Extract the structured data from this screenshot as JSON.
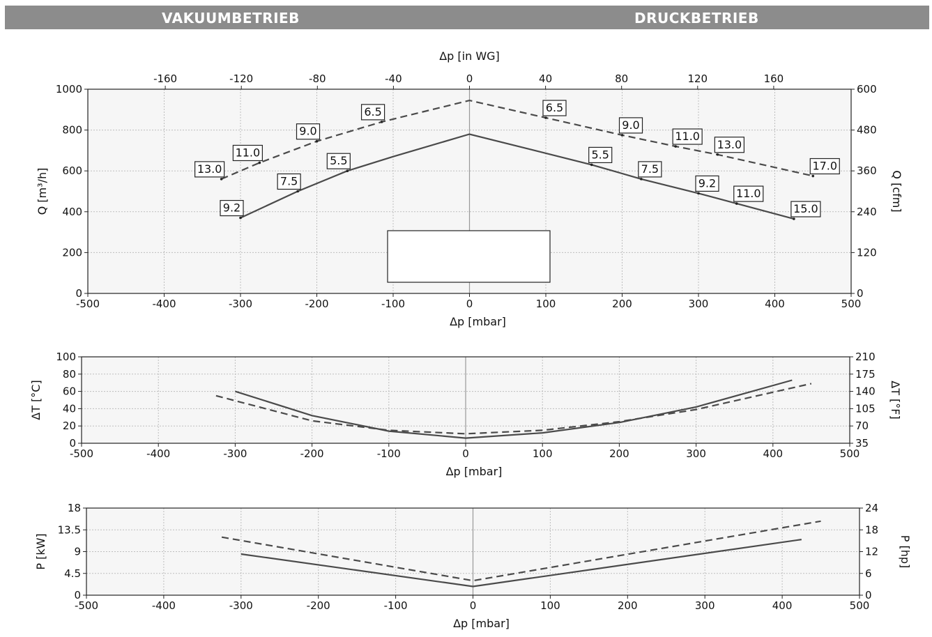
{
  "header": {
    "left_title": "VAKUUMBETRIEB",
    "right_title": "DRUCKBETRIEB"
  },
  "colors": {
    "header_bg": "#8c8c8c",
    "series": "#4a4a4a",
    "grid": "#bdbdbd",
    "plot_bg": "#f6f6f6"
  },
  "chart_data": [
    {
      "type": "line",
      "id": "flow",
      "xlabel": "Δp [mbar]",
      "xlim": [
        -500,
        500
      ],
      "xticks": [
        -500,
        -400,
        -300,
        -200,
        -100,
        0,
        100,
        200,
        300,
        400,
        500
      ],
      "top_xlabel": "Δp [in WG]",
      "top_xticks": [
        -160,
        -120,
        -80,
        -40,
        0,
        40,
        80,
        120,
        160
      ],
      "ylabel": "Q [m³/h]",
      "ylim": [
        0,
        1000
      ],
      "yticks": [
        0,
        200,
        400,
        600,
        800,
        1000
      ],
      "y2label": "Q [cfm]",
      "y2ticks": [
        0,
        120,
        240,
        360,
        480,
        600
      ],
      "grid": true,
      "legend_box": "center-bottom (blank)",
      "series": [
        {
          "style": "solid",
          "points": [
            {
              "x": -300,
              "y": 370,
              "label": "9.2"
            },
            {
              "x": -225,
              "y": 500,
              "label": "7.5"
            },
            {
              "x": -160,
              "y": 600,
              "label": "5.5"
            },
            {
              "x": -100,
              "y": 670
            },
            {
              "x": 0,
              "y": 780
            },
            {
              "x": 160,
              "y": 630,
              "label": "5.5"
            },
            {
              "x": 225,
              "y": 560,
              "label": "7.5"
            },
            {
              "x": 300,
              "y": 490,
              "label": "9.2"
            },
            {
              "x": 350,
              "y": 440,
              "label": "11.0"
            },
            {
              "x": 425,
              "y": 365,
              "label": "15.0"
            }
          ]
        },
        {
          "style": "dashed",
          "points": [
            {
              "x": -325,
              "y": 560,
              "label": "13.0"
            },
            {
              "x": -275,
              "y": 640,
              "label": "11.0"
            },
            {
              "x": -200,
              "y": 745,
              "label": "9.0"
            },
            {
              "x": -115,
              "y": 840,
              "label": "6.5"
            },
            {
              "x": 0,
              "y": 945
            },
            {
              "x": 100,
              "y": 860,
              "label": "6.5"
            },
            {
              "x": 200,
              "y": 775,
              "label": "9.0"
            },
            {
              "x": 270,
              "y": 720,
              "label": "11.0"
            },
            {
              "x": 325,
              "y": 680,
              "label": "13.0"
            },
            {
              "x": 450,
              "y": 575,
              "label": "17.0"
            }
          ]
        }
      ]
    },
    {
      "type": "line",
      "id": "temperature",
      "xlabel": "Δp [mbar]",
      "xlim": [
        -500,
        500
      ],
      "xticks": [
        -500,
        -400,
        -300,
        -200,
        -100,
        0,
        100,
        200,
        300,
        400,
        500
      ],
      "ylabel": "ΔT [°C]",
      "ylim": [
        0,
        100
      ],
      "yticks": [
        0,
        20,
        40,
        60,
        80,
        100
      ],
      "y2label": "ΔT [°F]",
      "y2ticks": [
        35,
        70,
        105,
        140,
        175,
        210
      ],
      "grid": true,
      "series": [
        {
          "style": "solid",
          "points": [
            {
              "x": -300,
              "y": 60
            },
            {
              "x": -200,
              "y": 32
            },
            {
              "x": -100,
              "y": 14
            },
            {
              "x": 0,
              "y": 6
            },
            {
              "x": 100,
              "y": 12
            },
            {
              "x": 200,
              "y": 24
            },
            {
              "x": 300,
              "y": 42
            },
            {
              "x": 425,
              "y": 73
            }
          ]
        },
        {
          "style": "dashed",
          "points": [
            {
              "x": -325,
              "y": 55
            },
            {
              "x": -200,
              "y": 26
            },
            {
              "x": -100,
              "y": 15
            },
            {
              "x": 0,
              "y": 11
            },
            {
              "x": 100,
              "y": 15
            },
            {
              "x": 200,
              "y": 25
            },
            {
              "x": 300,
              "y": 39
            },
            {
              "x": 450,
              "y": 69
            }
          ]
        }
      ]
    },
    {
      "type": "line",
      "id": "power",
      "xlabel": "Δp [mbar]",
      "xlim": [
        -500,
        500
      ],
      "xticks": [
        -500,
        -400,
        -300,
        -200,
        -100,
        0,
        100,
        200,
        300,
        400,
        500
      ],
      "ylabel": "P [kW]",
      "ylim": [
        0,
        18
      ],
      "yticks": [
        0,
        4.5,
        9,
        13.5,
        18
      ],
      "y2label": "P [hp]",
      "y2ticks": [
        0,
        6,
        12,
        18,
        24
      ],
      "grid": true,
      "series": [
        {
          "style": "solid",
          "points": [
            {
              "x": -300,
              "y": 8.5
            },
            {
              "x": 0,
              "y": 1.8
            },
            {
              "x": 425,
              "y": 11.5
            }
          ]
        },
        {
          "style": "dashed",
          "points": [
            {
              "x": -325,
              "y": 12.0
            },
            {
              "x": 0,
              "y": 3.0
            },
            {
              "x": 450,
              "y": 15.3
            }
          ]
        }
      ]
    }
  ]
}
